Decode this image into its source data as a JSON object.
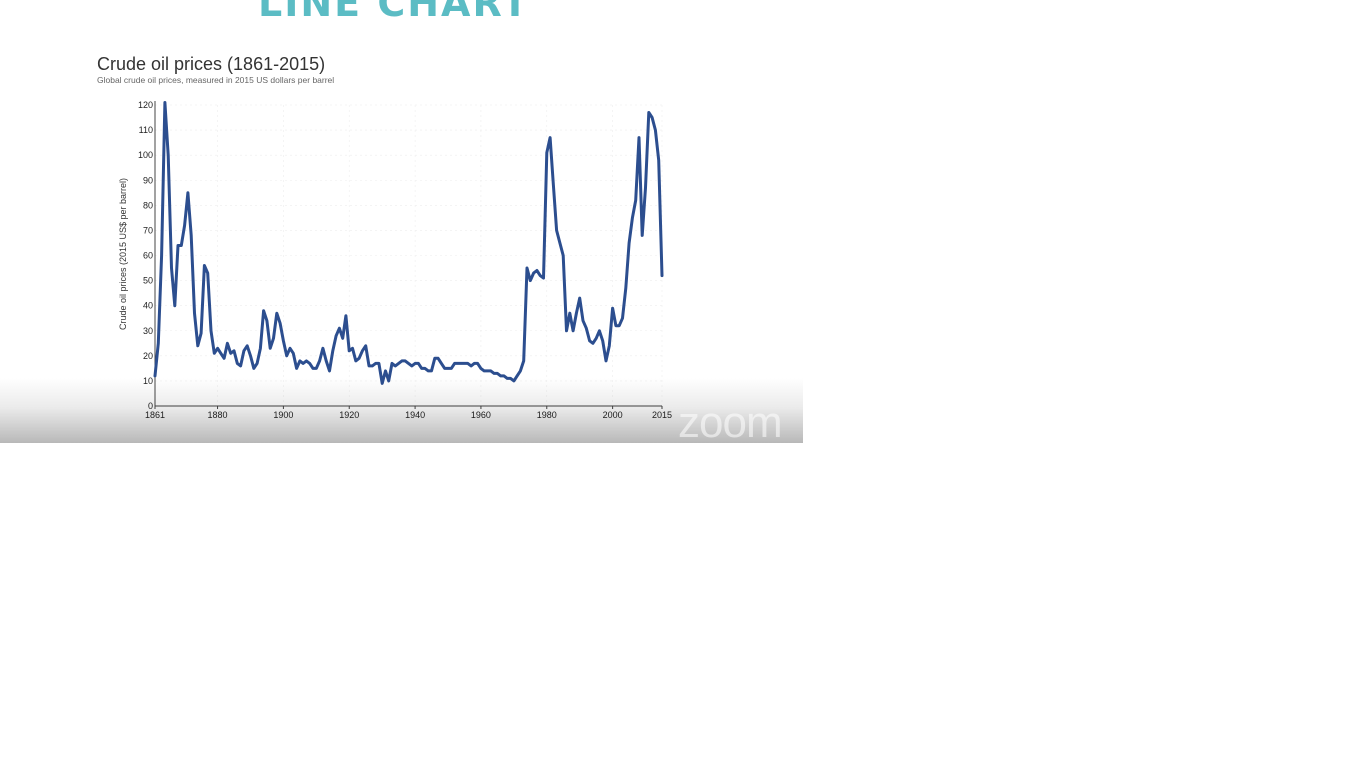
{
  "slide": {
    "heading": "LINE CHART",
    "watermark": "zoom"
  },
  "colors": {
    "heading": "#5bbcc4",
    "series": "#2c4e8f"
  },
  "chart_data": {
    "type": "line",
    "title": "Crude oil prices (1861-2015)",
    "subtitle": "Global crude oil prices, measured in 2015 US dollars per barrel",
    "ylabel": "Crude oil prices (2015 US$ per barrel)",
    "xlabel": "",
    "xlim": [
      1861,
      2015
    ],
    "ylim": [
      0,
      120
    ],
    "x_ticks": [
      1861,
      1880,
      1900,
      1920,
      1940,
      1960,
      1980,
      2000,
      2015
    ],
    "y_ticks": [
      0,
      10,
      20,
      30,
      40,
      50,
      60,
      70,
      80,
      90,
      100,
      110,
      120
    ],
    "grid": true,
    "series": [
      {
        "x": [
          1861,
          1862,
          1863,
          1864,
          1865,
          1866,
          1867,
          1868,
          1869,
          1870,
          1871,
          1872,
          1873,
          1874,
          1875,
          1876,
          1877,
          1878,
          1879,
          1880,
          1881,
          1882,
          1883,
          1884,
          1885,
          1886,
          1887,
          1888,
          1889,
          1890,
          1891,
          1892,
          1893,
          1894,
          1895,
          1896,
          1897,
          1898,
          1899,
          1900,
          1901,
          1902,
          1903,
          1904,
          1905,
          1906,
          1907,
          1908,
          1909,
          1910,
          1911,
          1912,
          1913,
          1914,
          1915,
          1916,
          1917,
          1918,
          1919,
          1920,
          1921,
          1922,
          1923,
          1924,
          1925,
          1926,
          1927,
          1928,
          1929,
          1930,
          1931,
          1932,
          1933,
          1934,
          1935,
          1936,
          1937,
          1938,
          1939,
          1940,
          1941,
          1942,
          1943,
          1944,
          1945,
          1946,
          1947,
          1948,
          1949,
          1950,
          1951,
          1952,
          1953,
          1954,
          1955,
          1956,
          1957,
          1958,
          1959,
          1960,
          1961,
          1962,
          1963,
          1964,
          1965,
          1966,
          1967,
          1968,
          1969,
          1970,
          1971,
          1972,
          1973,
          1974,
          1975,
          1976,
          1977,
          1978,
          1979,
          1980,
          1981,
          1982,
          1983,
          1984,
          1985,
          1986,
          1987,
          1988,
          1989,
          1990,
          1991,
          1992,
          1993,
          1994,
          1995,
          1996,
          1997,
          1998,
          1999,
          2000,
          2001,
          2002,
          2003,
          2004,
          2005,
          2006,
          2007,
          2008,
          2009,
          2010,
          2011,
          2012,
          2013,
          2014,
          2015
        ],
        "values": [
          12,
          25,
          60,
          121,
          100,
          55,
          40,
          64,
          64,
          72,
          85,
          68,
          37,
          24,
          29,
          56,
          53,
          30,
          21,
          23,
          21,
          19,
          25,
          21,
          22,
          17,
          16,
          22,
          24,
          20,
          15,
          17,
          23,
          38,
          34,
          23,
          27,
          37,
          33,
          26,
          20,
          23,
          21,
          15,
          18,
          17,
          18,
          17,
          15,
          15,
          18,
          23,
          18,
          14,
          22,
          28,
          31,
          27,
          36,
          22,
          23,
          18,
          19,
          22,
          24,
          16,
          16,
          17,
          17,
          9,
          14,
          10,
          17,
          16,
          17,
          18,
          18,
          17,
          16,
          17,
          17,
          15,
          15,
          14,
          14,
          19,
          19,
          17,
          15,
          15,
          15,
          17,
          17,
          17,
          17,
          17,
          16,
          17,
          17,
          15,
          14,
          14,
          14,
          13,
          13,
          12,
          12,
          11,
          11,
          10,
          12,
          14,
          18,
          55,
          50,
          53,
          54,
          52,
          51,
          101,
          107,
          88,
          70,
          65,
          60,
          30,
          37,
          30,
          37,
          43,
          34,
          31,
          26,
          25,
          27,
          30,
          26,
          18,
          24,
          39,
          32,
          32,
          35,
          47,
          65,
          75,
          82,
          107,
          68,
          87,
          117,
          115,
          110,
          98,
          52
        ]
      }
    ]
  }
}
